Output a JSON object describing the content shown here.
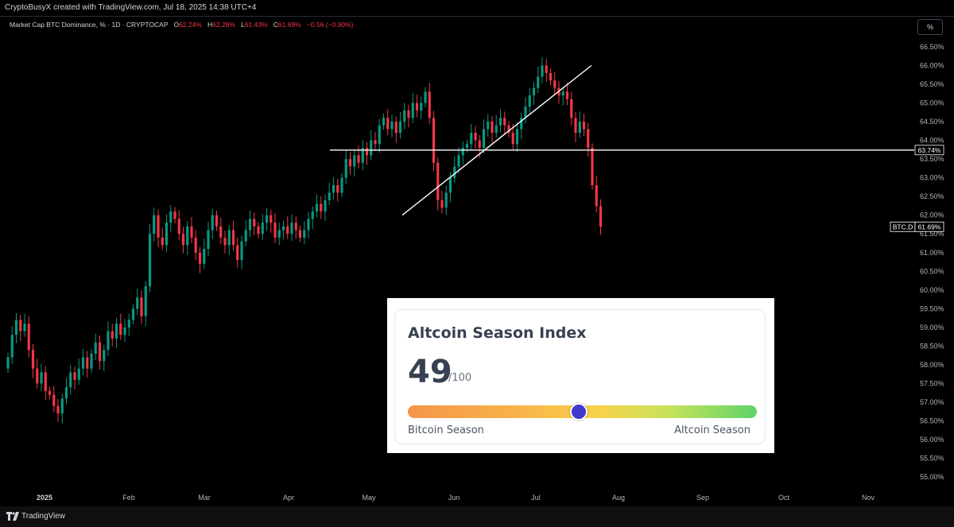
{
  "header": {
    "attribution": "CryptoBusyX created with TradingView.com, Jul 18, 2025 14:38 UTC+4"
  },
  "legend": {
    "symbol": "Market Cap BTC Dominance, % · 1D · CRYPTOCAP",
    "o_label": "O",
    "o_value": "62.24%",
    "h_label": "H",
    "h_value": "62.28%",
    "l_label": "L",
    "l_value": "61.43%",
    "c_label": "C",
    "c_value": "61.69%",
    "change": "−0.56 (−0.90%)",
    "down_color": "#f23645",
    "up_color": "#089981"
  },
  "toolbar": {
    "percent_button": "%"
  },
  "chart_data": {
    "type": "candlestick",
    "symbol": "BTC.D",
    "ylim": [
      54.75,
      66.9
    ],
    "y_ticks": [
      "66.50%",
      "66.00%",
      "65.50%",
      "65.00%",
      "64.50%",
      "64.00%",
      "63.50%",
      "63.00%",
      "62.50%",
      "62.00%",
      "61.50%",
      "61.00%",
      "60.50%",
      "60.00%",
      "59.50%",
      "59.00%",
      "58.50%",
      "58.00%",
      "57.50%",
      "57.00%",
      "56.50%",
      "56.00%",
      "55.50%",
      "55.00%"
    ],
    "x_ticks": [
      "2025",
      "Feb",
      "Mar",
      "Apr",
      "May",
      "Jun",
      "Jul",
      "Aug",
      "Sep",
      "Oct",
      "Nov"
    ],
    "closes": [
      58.2,
      58.8,
      59.2,
      58.9,
      59.1,
      58.4,
      57.9,
      57.5,
      57.8,
      57.3,
      57.2,
      56.9,
      56.7,
      57.1,
      57.4,
      57.8,
      57.6,
      57.9,
      58.2,
      57.9,
      58.3,
      58.6,
      58.1,
      58.4,
      58.9,
      58.7,
      59.1,
      58.8,
      59.0,
      59.2,
      59.5,
      59.8,
      59.3,
      60.1,
      61.5,
      62.0,
      61.4,
      61.2,
      61.8,
      62.1,
      61.9,
      61.5,
      61.2,
      61.7,
      61.4,
      61.0,
      60.7,
      61.1,
      61.6,
      62.0,
      61.7,
      61.4,
      61.2,
      61.6,
      61.2,
      60.8,
      61.3,
      61.6,
      61.9,
      61.7,
      61.5,
      61.8,
      62.0,
      61.8,
      61.4,
      61.6,
      61.7,
      61.5,
      61.8,
      61.6,
      61.4,
      61.6,
      61.9,
      62.1,
      62.3,
      62.1,
      62.4,
      62.6,
      62.8,
      62.6,
      63.0,
      63.5,
      63.3,
      63.6,
      63.4,
      63.8,
      63.6,
      64.0,
      63.9,
      64.4,
      64.6,
      64.3,
      64.5,
      64.2,
      64.5,
      64.8,
      64.6,
      65.0,
      64.8,
      65.0,
      65.3,
      64.6,
      63.4,
      62.4,
      62.2,
      62.6,
      63.0,
      63.3,
      63.6,
      63.8,
      63.9,
      64.2,
      64.0,
      63.8,
      64.3,
      64.5,
      64.2,
      64.4,
      64.6,
      64.4,
      64.2,
      63.9,
      64.3,
      64.6,
      64.9,
      65.2,
      65.4,
      65.7,
      66.0,
      65.8,
      65.6,
      65.4,
      65.2,
      65.3,
      65.1,
      64.6,
      64.2,
      64.5,
      64.3,
      63.8,
      62.8,
      62.24,
      61.69
    ],
    "horizontal_level": 63.74,
    "horizontal_level_label": "63.74%",
    "last_price_label": "61.69%",
    "last_price": 61.69,
    "trendline": {
      "start": [
        "2025-05-15",
        62.0
      ],
      "end": [
        "2025-07-25",
        66.0
      ]
    }
  },
  "altcoin_index": {
    "title": "Altcoin Season Index",
    "value": "49",
    "max": "/100",
    "level": 0.49,
    "left_label": "Bitcoin Season",
    "right_label": "Altcoin Season"
  },
  "footer": {
    "brand": "TradingView"
  }
}
